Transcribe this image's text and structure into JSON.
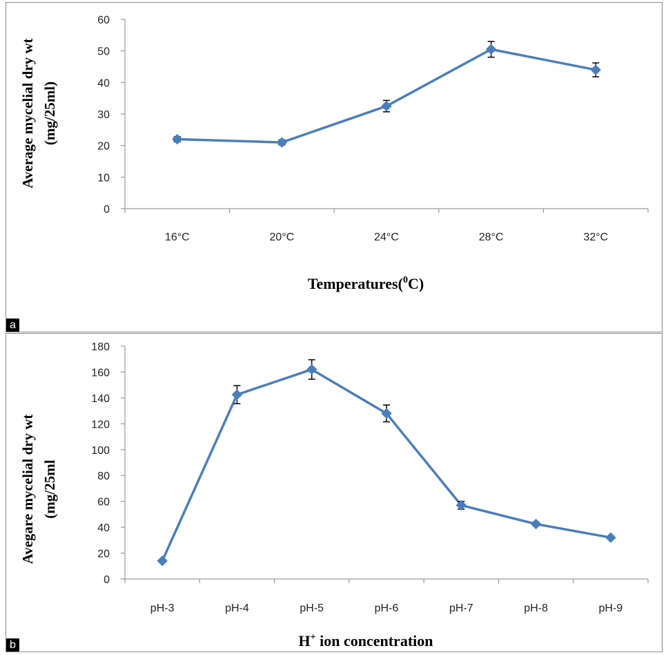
{
  "colors": {
    "series": "#4a7ebb",
    "marker": "#4a7ebb",
    "axis": "#868686",
    "errorbar": "#000000"
  },
  "chart_data": [
    {
      "id": "a",
      "panel_label": "a",
      "type": "line",
      "categories": [
        "16°C",
        "20°C",
        "24°C",
        "28°C",
        "32°C"
      ],
      "series": [
        {
          "values": [
            22,
            21,
            32.5,
            50.5,
            44
          ],
          "errors": [
            0.8,
            0.8,
            1.8,
            2.5,
            2.2
          ]
        }
      ],
      "ylim": [
        0,
        60
      ],
      "yticks": [
        0,
        10,
        20,
        30,
        40,
        50,
        60
      ],
      "ylabel_lines": [
        "Average mycelial dry wt",
        "(mg/25ml)"
      ],
      "xlabel_main": "Temperatures(",
      "xlabel_sup": "0",
      "xlabel_end": "C)",
      "grid": false,
      "marker": "diamond"
    },
    {
      "id": "b",
      "panel_label": "b",
      "type": "line",
      "categories": [
        "pH-3",
        "pH-4",
        "pH-5",
        "pH-6",
        "pH-7",
        "pH-8",
        "pH-9"
      ],
      "series": [
        {
          "values": [
            14,
            142.5,
            162,
            128,
            57,
            42.5,
            32
          ],
          "errors": [
            0.8,
            7,
            7.5,
            6.5,
            3,
            1.5,
            1
          ]
        }
      ],
      "ylim": [
        0,
        180
      ],
      "yticks": [
        0,
        20,
        40,
        60,
        80,
        100,
        120,
        140,
        160,
        180
      ],
      "ylabel_lines": [
        "Avegare mycelial dry wt",
        "(mg/25ml"
      ],
      "xlabel_main": "H",
      "xlabel_sup": "+",
      "xlabel_end": " ion concentration",
      "grid": false,
      "marker": "diamond"
    }
  ]
}
